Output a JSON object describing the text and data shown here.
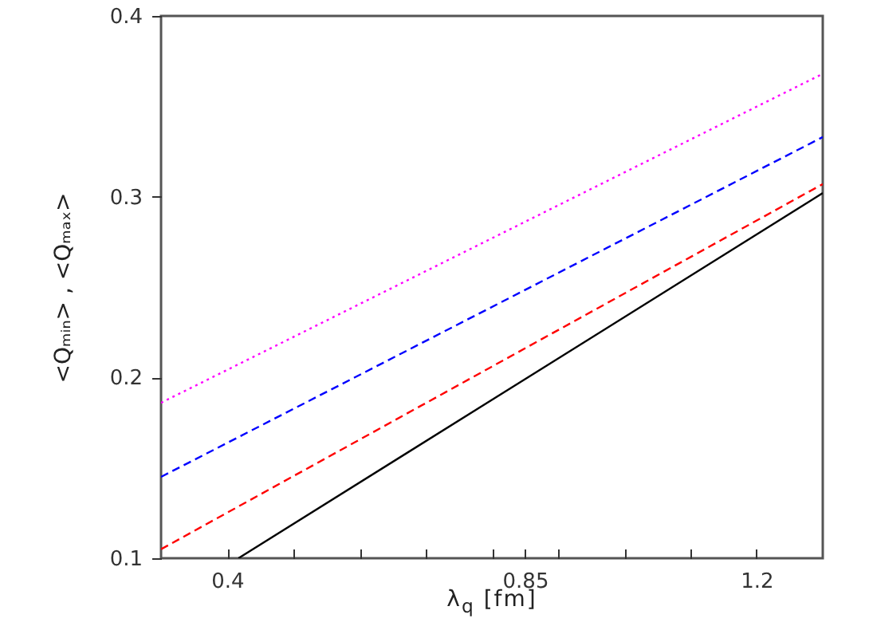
{
  "chart_data": {
    "type": "line",
    "xlabel": "λ$_{q}$ [fm]",
    "ylabel": "<Qₘᵢₙ> , <Qₘₐₓ>",
    "xlim": [
      0.3,
      1.3
    ],
    "xticks": [
      0.4,
      {
        "value": 0.5,
        "label": null
      },
      {
        "value": 0.6,
        "label": null
      },
      {
        "value": 0.7,
        "label": null
      },
      {
        "value": 0.8,
        "label": null
      },
      0.85,
      {
        "value": 0.9,
        "label": null
      },
      {
        "value": 1.0,
        "label": null
      },
      {
        "value": 1.1,
        "label": null
      },
      1.2
    ],
    "ylim": [
      0.1,
      0.4
    ],
    "yticks": [
      0.1,
      0.2,
      0.3,
      0.4
    ],
    "grid": false,
    "series": [
      {
        "color": "#000000",
        "line_style": "solid",
        "x": [
          0.417,
          1.3
        ],
        "values": [
          0.1,
          0.302
        ]
      },
      {
        "color": "#ff0000",
        "line_style": "dashed",
        "x": [
          0.3,
          1.3
        ],
        "values": [
          0.105,
          0.307
        ]
      },
      {
        "color": "#0000ff",
        "line_style": "dashed",
        "x": [
          0.3,
          1.3
        ],
        "values": [
          0.145,
          0.333
        ]
      },
      {
        "color": "#ff00ff",
        "line_style": "dotted",
        "x": [
          0.3,
          1.3
        ],
        "values": [
          0.186,
          0.368
        ]
      }
    ]
  }
}
